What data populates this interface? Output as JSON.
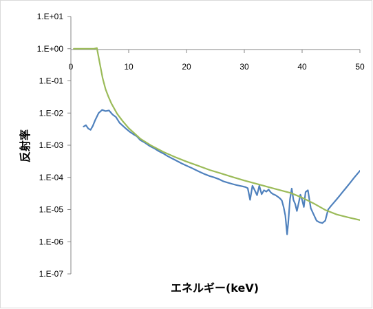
{
  "chart_data": {
    "type": "line",
    "title": "",
    "xlabel": "エネルギー(keV)",
    "ylabel": "反射率",
    "xlim": [
      0,
      50
    ],
    "ylim": [
      1e-07,
      10
    ],
    "yscale": "log",
    "grid": false,
    "legend": "none",
    "x_ticks": [
      0,
      10,
      20,
      30,
      40,
      50
    ],
    "x_tick_labels": [
      "0",
      "10",
      "20",
      "30",
      "40",
      "50"
    ],
    "y_ticks": [
      10,
      1,
      0.1,
      0.01,
      0.001,
      0.0001,
      1e-05,
      1e-06,
      1e-07
    ],
    "y_tick_labels": [
      "1.E+01",
      "1.E+00",
      "1.E-01",
      "1.E-02",
      "1.E-03",
      "1.E-04",
      "1.E-05",
      "1.E-06",
      "1.E-07"
    ],
    "colors": {
      "series_1": "#4f81bd",
      "series_2": "#9bbb59",
      "axis": "#868686",
      "frame": "#d9d9d9"
    },
    "series": [
      {
        "color": "#4f81bd",
        "x": [
          2.2,
          2.6,
          3.0,
          3.4,
          3.8,
          4.2,
          4.8,
          5.4,
          6.0,
          6.6,
          7.2,
          7.8,
          8.4,
          9.0,
          9.6,
          10.2,
          10.8,
          11.4,
          12.0,
          12.8,
          13.6,
          14.4,
          15.2,
          16.0,
          16.8,
          17.6,
          18.4,
          19.2,
          20.0,
          20.8,
          21.6,
          22.4,
          23.2,
          24.0,
          24.8,
          25.6,
          26.4,
          27.2,
          28.0,
          28.6,
          29.2,
          29.8,
          30.2,
          30.6,
          31.0,
          31.4,
          31.8,
          32.2,
          32.6,
          33.0,
          33.4,
          33.8,
          34.2,
          34.6,
          35.0,
          35.4,
          35.8,
          36.2,
          36.5,
          36.8,
          37.1,
          37.4,
          37.6,
          37.9,
          38.2,
          38.5,
          38.8,
          39.1,
          39.4,
          39.7,
          40.0,
          40.3,
          40.6,
          41.0,
          41.5,
          42.0,
          42.5,
          43.0,
          43.5,
          44.0,
          44.5,
          45.0,
          45.5,
          46.0,
          46.5,
          47.0,
          47.5,
          48.0,
          48.5,
          49.0,
          49.5,
          50.0
        ],
        "y": [
          0.0038,
          0.0042,
          0.0033,
          0.003,
          0.004,
          0.006,
          0.01,
          0.0125,
          0.0115,
          0.012,
          0.009,
          0.0075,
          0.005,
          0.004,
          0.0032,
          0.0026,
          0.0022,
          0.0019,
          0.00145,
          0.0012,
          0.00095,
          0.0008,
          0.00065,
          0.00055,
          0.00045,
          0.00038,
          0.00032,
          0.00027,
          0.00023,
          0.0002,
          0.00017,
          0.000145,
          0.000125,
          0.00011,
          0.0001,
          8.8e-05,
          7.5e-05,
          6.8e-05,
          6.2e-05,
          5.8e-05,
          5.5e-05,
          5.2e-05,
          5e-05,
          4.6e-05,
          2e-05,
          5.5e-05,
          4e-05,
          2.8e-05,
          5.5e-05,
          3e-05,
          4e-05,
          3.6e-05,
          4.2e-05,
          3.4e-05,
          3e-05,
          2.8e-05,
          2.5e-05,
          2.2e-05,
          1.9e-05,
          1.2e-05,
          6.5e-06,
          1.7e-06,
          3.8e-06,
          2.1e-05,
          4.5e-05,
          2e-05,
          1.5e-05,
          9e-06,
          1.6e-05,
          2.9e-05,
          2e-05,
          1.2e-05,
          3.5e-05,
          4e-05,
          1.1e-05,
          7e-06,
          4.5e-06,
          4e-06,
          3.8e-06,
          4.5e-06,
          1e-05,
          1.3e-05,
          1.65e-05,
          2.1e-05,
          2.7e-05,
          3.5e-05,
          4.5e-05,
          5.8e-05,
          7.5e-05,
          9.8e-05,
          0.000125,
          0.00016
        ]
      },
      {
        "color": "#9bbb59",
        "x": [
          0.5,
          1.0,
          2.0,
          3.0,
          4.0,
          4.5,
          5.0,
          5.5,
          6.0,
          6.5,
          7.0,
          8.0,
          9.0,
          10.0,
          12.0,
          14.0,
          16.0,
          18.0,
          20.0,
          22.0,
          24.0,
          26.0,
          28.0,
          30.0,
          32.0,
          34.0,
          36.0,
          38.0,
          40.0,
          42.0,
          44.0,
          46.0,
          48.0,
          50.0
        ],
        "y": [
          1.0,
          1.0,
          1.0,
          1.0,
          1.0,
          1.05,
          0.35,
          0.12,
          0.055,
          0.032,
          0.02,
          0.0095,
          0.0055,
          0.0034,
          0.0016,
          0.00095,
          0.00062,
          0.00043,
          0.00031,
          0.00023,
          0.00017,
          0.000132,
          0.000102,
          8e-05,
          6.4e-05,
          5.1e-05,
          4.1e-05,
          3.3e-05,
          2.35e-05,
          1.55e-05,
          9.7e-06,
          7e-06,
          5.7e-06,
          4.7e-06
        ]
      }
    ]
  }
}
